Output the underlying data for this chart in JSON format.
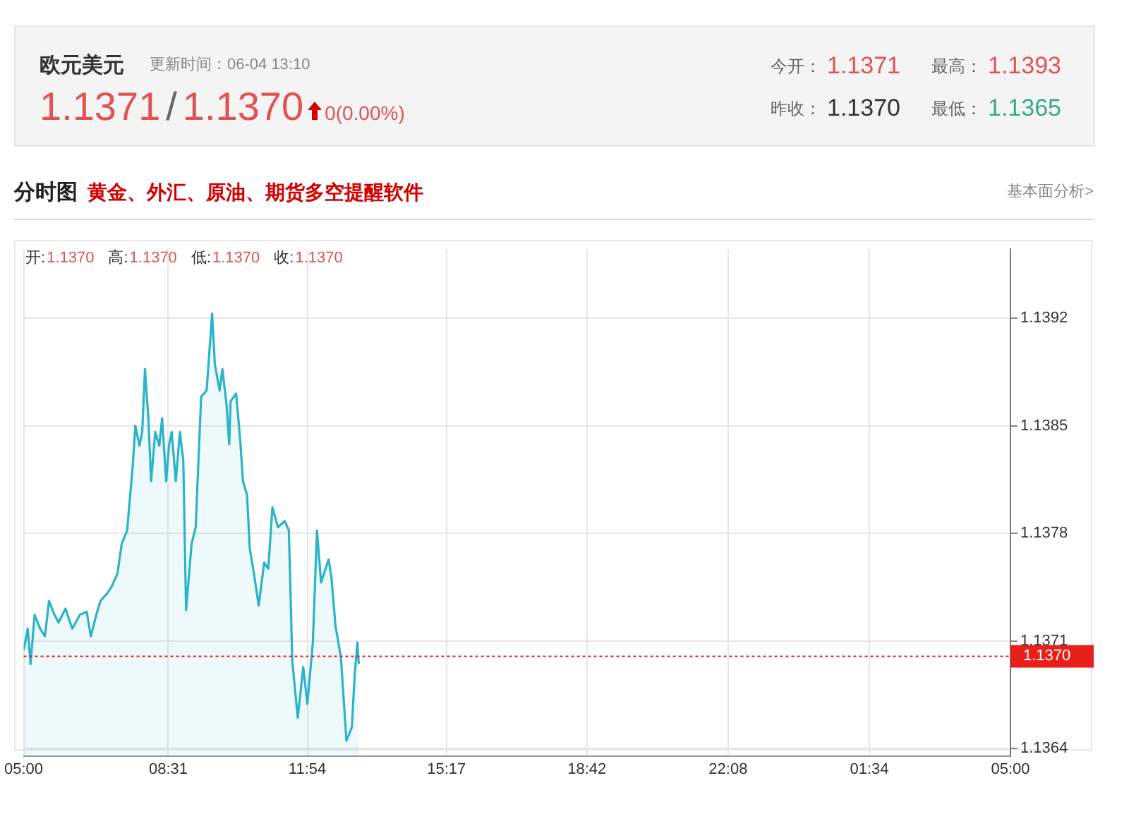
{
  "chart_data": {
    "type": "area",
    "title": "欧元美元",
    "annotations": [
      "更新时间：06-04 13:10",
      "1.1371",
      "/",
      "1.1370",
      "0(0.00%)",
      "今开：",
      "1.1371",
      "最高：",
      "1.1393",
      "昨收：",
      "1.1370",
      "最低：",
      "1.1365",
      "分时图",
      "黄金、外汇、原油、期货多空提醒软件",
      "基本面分析>",
      "开:",
      "1.1370",
      "高:",
      "1.1370",
      "低:",
      "1.1370",
      "收:",
      "1.1370"
    ],
    "x": [
      "--06-04T05:00",
      "--06-04T05:06",
      "--06-04T05:10",
      "--06-04T05:16",
      "--06-04T05:24",
      "--06-04T05:31",
      "--06-04T05:37",
      "--06-04T05:45",
      "--06-04T05:51",
      "--06-04T06:01",
      "--06-04T06:11",
      "--06-04T06:22",
      "--06-04T06:32",
      "--06-04T06:38",
      "--06-04T06:46",
      "--06-04T06:52",
      "--06-04T07:02",
      "--06-04T07:08",
      "--06-04T07:17",
      "--06-04T07:23",
      "--06-04T07:31",
      "--06-04T07:39",
      "--06-04T07:43",
      "--06-04T07:49",
      "--06-04T07:53",
      "--06-04T07:57",
      "--06-04T08:02",
      "--06-04T08:06",
      "--06-04T08:12",
      "--06-04T08:18",
      "--06-04T08:22",
      "--06-04T08:28",
      "--06-04T08:32",
      "--06-04T08:36",
      "--06-04T08:42",
      "--06-04T08:48",
      "--06-04T08:53",
      "--06-04T08:57",
      "--06-04T09:05",
      "--06-04T09:11",
      "--06-04T09:19",
      "--06-04T09:27",
      "--06-04T09:35",
      "--06-04T09:39",
      "--06-04T09:46",
      "--06-04T09:50",
      "--06-04T09:56",
      "--06-04T10:00",
      "--06-04T10:02",
      "--06-04T10:10",
      "--06-04T10:16",
      "--06-04T10:20",
      "--06-04T10:26",
      "--06-04T10:30",
      "--06-04T10:36",
      "--06-04T10:43",
      "--06-04T10:51",
      "--06-04T10:57",
      "--06-04T11:03",
      "--06-04T11:11",
      "--06-04T11:21",
      "--06-04T11:27",
      "--06-04T11:32",
      "--06-04T11:40",
      "--06-04T11:48",
      "--06-04T11:54",
      "--06-04T12:02",
      "--06-04T12:08",
      "--06-04T12:14",
      "--06-04T12:25",
      "--06-04T12:29",
      "--06-04T12:35",
      "--06-04T12:43",
      "--06-04T12:51",
      "--06-04T12:59",
      "--06-04T13:03",
      "--06-04T13:07",
      "--06-04T13:09"
    ],
    "series": [
      {
        "color": "#2bb3c9",
        "values": [
          1.13704,
          1.13718,
          1.13695,
          1.13727,
          1.13718,
          1.13713,
          1.13736,
          1.13727,
          1.13722,
          1.13731,
          1.13718,
          1.13727,
          1.13729,
          1.13713,
          1.13727,
          1.13736,
          1.13741,
          1.13745,
          1.13754,
          1.13773,
          1.13782,
          1.13823,
          1.1385,
          1.13837,
          1.13846,
          1.13887,
          1.13855,
          1.13814,
          1.13846,
          1.13837,
          1.13855,
          1.13814,
          1.13837,
          1.13846,
          1.13814,
          1.13846,
          1.13827,
          1.1373,
          1.13773,
          1.13784,
          1.13869,
          1.13873,
          1.13923,
          1.1389,
          1.13873,
          1.13887,
          1.13864,
          1.13838,
          1.13866,
          1.13871,
          1.13841,
          1.13814,
          1.13805,
          1.1377,
          1.13754,
          1.13733,
          1.13761,
          1.13757,
          1.13797,
          1.13784,
          1.13788,
          1.13782,
          1.13697,
          1.1366,
          1.13693,
          1.13669,
          1.13709,
          1.13782,
          1.13748,
          1.13763,
          1.13752,
          1.1372,
          1.13699,
          1.13645,
          1.13654,
          1.13688,
          1.13709,
          1.13695
        ]
      }
    ],
    "xlim": [
      "--06-04T05:00",
      "--06-05T05:00"
    ],
    "xticks": [
      {
        "value": "--06-04T05:00",
        "label": "05:00"
      },
      {
        "value": "--06-04T08:31",
        "label": "08:31"
      },
      {
        "value": "--06-04T11:54",
        "label": "11:54"
      },
      {
        "value": "--06-04T15:17",
        "label": "15:17"
      },
      {
        "value": "--06-04T18:42",
        "label": "18:42"
      },
      {
        "value": "--06-04T22:08",
        "label": "22:08"
      },
      {
        "value": "--06-05T01:34",
        "label": "01:34"
      },
      {
        "value": "--06-05T05:00",
        "label": "05:00"
      }
    ],
    "ylim": [
      1.13635,
      1.13965
    ],
    "yticks": [
      1.1364,
      1.1371,
      1.1378,
      1.1385,
      1.1392
    ],
    "ref_lines": [
      {
        "axis": "y",
        "value": 1.137,
        "label": "1.1370",
        "color": "#e8201a",
        "line_style": "dotted"
      }
    ],
    "grid": true,
    "legend": false,
    "marker": "none",
    "line_style": "solid"
  }
}
